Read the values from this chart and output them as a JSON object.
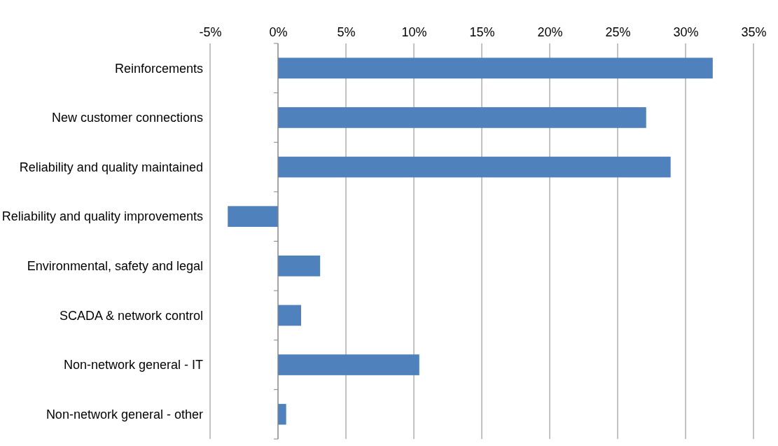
{
  "chart_data": {
    "type": "bar",
    "orientation": "horizontal",
    "categories": [
      "Reinforcements",
      "New customer connections",
      "Reliability and quality  maintained",
      "Reliability and quality  improvements",
      "Environmental, safety and legal",
      "SCADA & network control",
      "Non-network general - IT",
      "Non-network general - other"
    ],
    "values": [
      32.0,
      27.1,
      28.9,
      -3.7,
      3.1,
      1.7,
      10.4,
      0.6
    ],
    "color": "#4f81bd",
    "xlim": [
      -5,
      35
    ],
    "xticks": [
      {
        "value": -5,
        "label": "-5%"
      },
      {
        "value": 0,
        "label": "0%"
      },
      {
        "value": 5,
        "label": "5%"
      },
      {
        "value": 10,
        "label": "10%"
      },
      {
        "value": 15,
        "label": "15%"
      },
      {
        "value": 20,
        "label": "20%"
      },
      {
        "value": 25,
        "label": "25%"
      },
      {
        "value": 30,
        "label": "30%"
      },
      {
        "value": 35,
        "label": "35%"
      }
    ],
    "grid": "x"
  }
}
